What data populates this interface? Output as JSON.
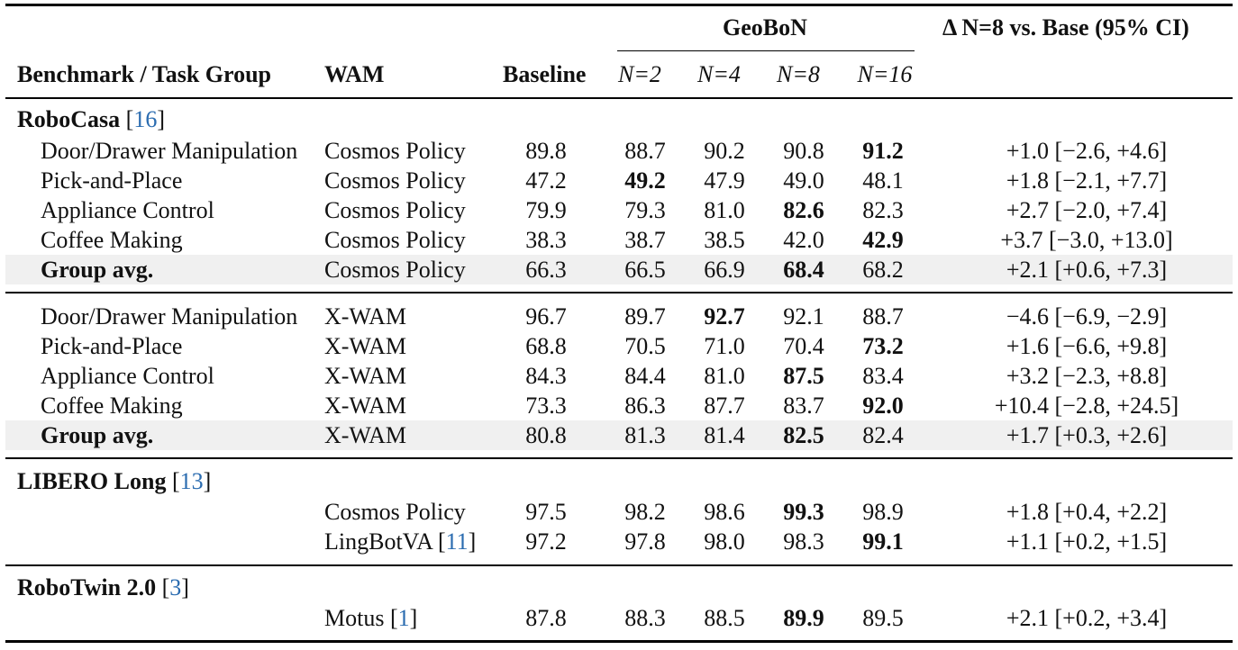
{
  "header": {
    "task_col": "Benchmark / Task Group",
    "wam_col": "WAM",
    "baseline_col": "Baseline",
    "geobon_group": "GeoBoN",
    "n_cols": [
      "N=2",
      "N=4",
      "N=8",
      "N=16"
    ],
    "delta_col": "Δ N=8 vs. Base (95% CI)"
  },
  "sections": {
    "robocasa": {
      "name": "RoboCasa",
      "ref": "16"
    },
    "libero": {
      "name": "LIBERO Long",
      "ref": "13"
    },
    "robotwin": {
      "name": "RoboTwin 2.0",
      "ref": "3"
    }
  },
  "rows": [
    {
      "task": "Door/Drawer Manipulation",
      "wam": "Cosmos Policy",
      "baseline": "89.8",
      "n2": "88.7",
      "n4": "90.2",
      "n8": "90.8",
      "n16": "91.2",
      "delta": "+1.0 [−2.6, +4.6]",
      "best": "n16"
    },
    {
      "task": "Pick-and-Place",
      "wam": "Cosmos Policy",
      "baseline": "47.2",
      "n2": "49.2",
      "n4": "47.9",
      "n8": "49.0",
      "n16": "48.1",
      "delta": "+1.8 [−2.1, +7.7]",
      "best": "n2"
    },
    {
      "task": "Appliance Control",
      "wam": "Cosmos Policy",
      "baseline": "79.9",
      "n2": "79.3",
      "n4": "81.0",
      "n8": "82.6",
      "n16": "82.3",
      "delta": "+2.7 [−2.0, +7.4]",
      "best": "n8"
    },
    {
      "task": "Coffee Making",
      "wam": "Cosmos Policy",
      "baseline": "38.3",
      "n2": "38.7",
      "n4": "38.5",
      "n8": "42.0",
      "n16": "42.9",
      "delta": "+3.7 [−3.0, +13.0]",
      "best": "n16"
    },
    {
      "task": "Group avg.",
      "wam": "Cosmos Policy",
      "baseline": "66.3",
      "n2": "66.5",
      "n4": "66.9",
      "n8": "68.4",
      "n16": "68.2",
      "delta": "+2.1 [+0.6, +7.3]",
      "best": "n8"
    },
    {
      "task": "Door/Drawer Manipulation",
      "wam": "X-WAM",
      "baseline": "96.7",
      "n2": "89.7",
      "n4": "92.7",
      "n8": "92.1",
      "n16": "88.7",
      "delta": "−4.6 [−6.9, −2.9]",
      "best": "n4"
    },
    {
      "task": "Pick-and-Place",
      "wam": "X-WAM",
      "baseline": "68.8",
      "n2": "70.5",
      "n4": "71.0",
      "n8": "70.4",
      "n16": "73.2",
      "delta": "+1.6 [−6.6, +9.8]",
      "best": "n16"
    },
    {
      "task": "Appliance Control",
      "wam": "X-WAM",
      "baseline": "84.3",
      "n2": "84.4",
      "n4": "81.0",
      "n8": "87.5",
      "n16": "83.4",
      "delta": "+3.2 [−2.3, +8.8]",
      "best": "n8"
    },
    {
      "task": "Coffee Making",
      "wam": "X-WAM",
      "baseline": "73.3",
      "n2": "86.3",
      "n4": "87.7",
      "n8": "83.7",
      "n16": "92.0",
      "delta": "+10.4 [−2.8, +24.5]",
      "best": "n16"
    },
    {
      "task": "Group avg.",
      "wam": "X-WAM",
      "baseline": "80.8",
      "n2": "81.3",
      "n4": "81.4",
      "n8": "82.5",
      "n16": "82.4",
      "delta": "+1.7 [+0.3, +2.6]",
      "best": "n8"
    },
    {
      "task": "",
      "wam": "Cosmos Policy",
      "wam_ref": "",
      "baseline": "97.5",
      "n2": "98.2",
      "n4": "98.6",
      "n8": "99.3",
      "n16": "98.9",
      "delta": "+1.8 [+0.4, +2.2]",
      "best": "n8"
    },
    {
      "task": "",
      "wam": "LingBotVA",
      "wam_ref": "11",
      "baseline": "97.2",
      "n2": "97.8",
      "n4": "98.0",
      "n8": "98.3",
      "n16": "99.1",
      "delta": "+1.1 [+0.2, +1.5]",
      "best": "n16"
    },
    {
      "task": "",
      "wam": "Motus",
      "wam_ref": "1",
      "baseline": "87.8",
      "n2": "88.3",
      "n4": "88.5",
      "n8": "89.9",
      "n16": "89.5",
      "delta": "+2.1 [+0.2, +3.4]",
      "best": "n8"
    }
  ]
}
